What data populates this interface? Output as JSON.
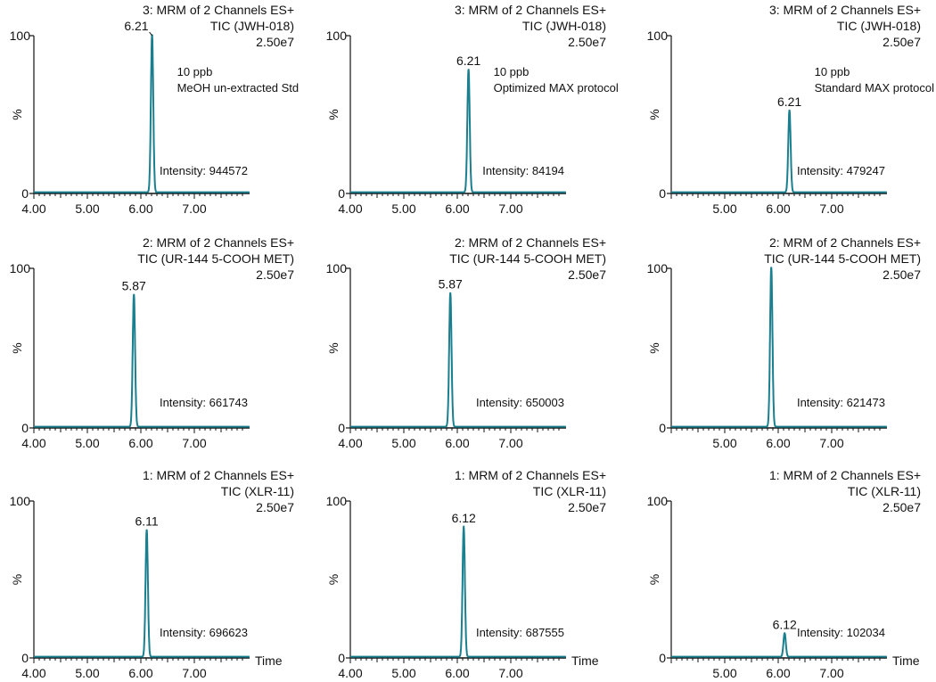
{
  "figure": {
    "time_label": "Time",
    "y_unit": "%",
    "trace_color": "#1a7f8e"
  },
  "chart_data": [
    {
      "type": "line",
      "row": 0,
      "col": 0,
      "title": [
        "3: MRM of 2 Channels ES+",
        "TIC (JWH-018)",
        "2.50e7"
      ],
      "notes": [
        "10 ppb",
        "MeOH  un-extracted Std"
      ],
      "intensity_label": "Intensity: 944572",
      "peak": {
        "rt": 6.21,
        "height": 100,
        "label": "6.21"
      },
      "xlim": [
        4.0,
        8.0
      ],
      "ylim": [
        0,
        100
      ],
      "x_ticks": [
        "4.00",
        "5.00",
        "6.00",
        "7.00"
      ],
      "y_ticks": [
        "0",
        "100"
      ],
      "ylabel": "%",
      "xlabel": ""
    },
    {
      "type": "line",
      "row": 0,
      "col": 1,
      "title": [
        "3: MRM of 2 Channels ES+",
        "TIC (JWH-018)",
        "2.50e7"
      ],
      "notes": [
        "10 ppb",
        "Optimized MAX protocol"
      ],
      "intensity_label": "Intensity: 84194",
      "peak": {
        "rt": 6.21,
        "height": 78,
        "label": "6.21"
      },
      "xlim": [
        4.0,
        8.0
      ],
      "ylim": [
        0,
        100
      ],
      "x_ticks": [
        "4.00",
        "5.00",
        "6.00",
        "7.00"
      ],
      "y_ticks": [
        "0",
        "100"
      ],
      "ylabel": "%",
      "xlabel": ""
    },
    {
      "type": "line",
      "row": 0,
      "col": 2,
      "title": [
        "3: MRM of 2 Channels ES+",
        "TIC (JWH-018)",
        "2.50e7"
      ],
      "notes": [
        "10 ppb",
        "Standard MAX protocol"
      ],
      "intensity_label": "Intensity: 479247",
      "peak": {
        "rt": 6.21,
        "height": 52,
        "label": "6.21"
      },
      "xlim": [
        4.0,
        8.0
      ],
      "ylim": [
        0,
        100
      ],
      "x_ticks": [
        "5.00",
        "6.00",
        "7.00"
      ],
      "y_ticks": [
        "0",
        "100"
      ],
      "ylabel": "%",
      "xlabel": ""
    },
    {
      "type": "line",
      "row": 1,
      "col": 0,
      "title": [
        "2: MRM of 2 Channels ES+",
        "TIC (UR-144 5-COOH MET)",
        "2.50e7"
      ],
      "notes": [],
      "intensity_label": "Intensity: 661743",
      "peak": {
        "rt": 5.87,
        "height": 83,
        "label": "5.87"
      },
      "xlim": [
        4.0,
        8.0
      ],
      "ylim": [
        0,
        100
      ],
      "x_ticks": [
        "4.00",
        "5.00",
        "6.00",
        "7.00"
      ],
      "y_ticks": [
        "0",
        "100"
      ],
      "ylabel": "%",
      "xlabel": ""
    },
    {
      "type": "line",
      "row": 1,
      "col": 1,
      "title": [
        "2: MRM of 2 Channels ES+",
        "TIC (UR-144 5-COOH MET)",
        "2.50e7"
      ],
      "notes": [],
      "intensity_label": "Intensity: 650003",
      "peak": {
        "rt": 5.87,
        "height": 84,
        "label": "5.87"
      },
      "xlim": [
        4.0,
        8.0
      ],
      "ylim": [
        0,
        100
      ],
      "x_ticks": [
        "4.00",
        "5.00",
        "6.00",
        "7.00"
      ],
      "y_ticks": [
        "0",
        "100"
      ],
      "ylabel": "%",
      "xlabel": ""
    },
    {
      "type": "line",
      "row": 1,
      "col": 2,
      "title": [
        "2: MRM of 2 Channels ES+",
        "TIC (UR-144 5-COOH MET)",
        "2.50e7"
      ],
      "notes": [],
      "intensity_label": "Intensity: 621473",
      "peak": {
        "rt": 5.87,
        "height": 100,
        "label": ""
      },
      "xlim": [
        4.0,
        8.0
      ],
      "ylim": [
        0,
        100
      ],
      "x_ticks": [
        "5.00",
        "6.00",
        "7.00"
      ],
      "y_ticks": [
        "0",
        "100"
      ],
      "ylabel": "%",
      "xlabel": ""
    },
    {
      "type": "line",
      "row": 2,
      "col": 0,
      "title": [
        "1: MRM of 2 Channels ES+",
        "TIC (XLR-11)",
        "2.50e7"
      ],
      "notes": [],
      "intensity_label": "Intensity: 696623",
      "peak": {
        "rt": 6.11,
        "height": 81,
        "label": "6.11"
      },
      "xlim": [
        4.0,
        8.0
      ],
      "ylim": [
        0,
        100
      ],
      "x_ticks": [
        "4.00",
        "5.00",
        "6.00",
        "7.00"
      ],
      "y_ticks": [
        "0",
        "100"
      ],
      "ylabel": "%",
      "xlabel": "Time"
    },
    {
      "type": "line",
      "row": 2,
      "col": 1,
      "title": [
        "1: MRM of 2 Channels ES+",
        "TIC (XLR-11)",
        "2.50e7"
      ],
      "notes": [],
      "intensity_label": "Intensity: 687555",
      "peak": {
        "rt": 6.12,
        "height": 83,
        "label": "6.12"
      },
      "xlim": [
        4.0,
        8.0
      ],
      "ylim": [
        0,
        100
      ],
      "x_ticks": [
        "4.00",
        "5.00",
        "6.00",
        "7.00"
      ],
      "y_ticks": [
        "0",
        "100"
      ],
      "ylabel": "%",
      "xlabel": "Time"
    },
    {
      "type": "line",
      "row": 2,
      "col": 2,
      "title": [
        "1: MRM of 2 Channels ES+",
        "TIC (XLR-11)",
        "2.50e7"
      ],
      "notes": [],
      "intensity_label": "Intensity: 102034",
      "peak": {
        "rt": 6.12,
        "height": 15,
        "label": "6.12"
      },
      "xlim": [
        4.0,
        8.0
      ],
      "ylim": [
        0,
        100
      ],
      "x_ticks": [
        "5.00",
        "6.00",
        "7.00"
      ],
      "y_ticks": [
        "0",
        "100"
      ],
      "ylabel": "%",
      "xlabel": "Time"
    }
  ]
}
